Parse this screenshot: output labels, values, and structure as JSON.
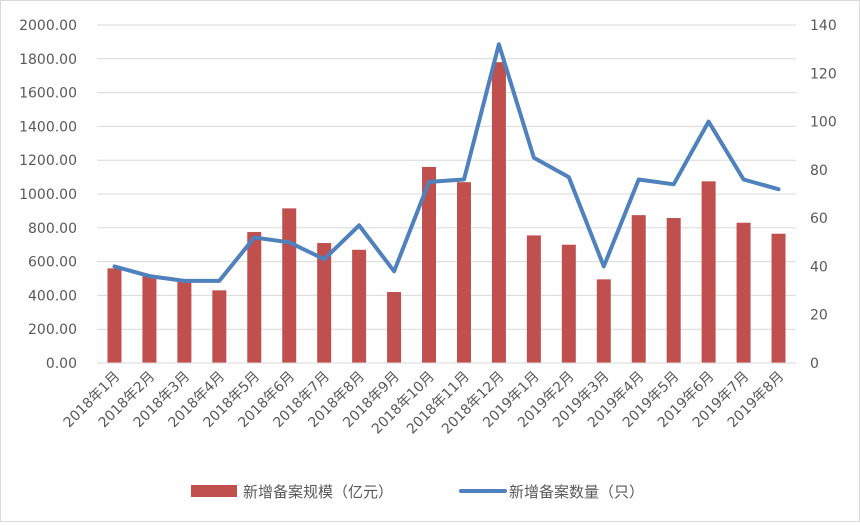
{
  "chart_data": {
    "type": "bar",
    "categories": [
      "2018年1月",
      "2018年2月",
      "2018年3月",
      "2018年4月",
      "2018年5月",
      "2018年6月",
      "2018年7月",
      "2018年8月",
      "2018年9月",
      "2018年10月",
      "2018年11月",
      "2018年12月",
      "2019年1月",
      "2019年2月",
      "2019年3月",
      "2019年4月",
      "2019年5月",
      "2019年6月",
      "2019年7月",
      "2019年8月"
    ],
    "series": [
      {
        "name": "新增备案规模（亿元）",
        "type": "bar",
        "axis": "left",
        "color": "#c0504d",
        "values": [
          560,
          520,
          490,
          430,
          775,
          915,
          710,
          670,
          420,
          1160,
          1070,
          1780,
          755,
          700,
          495,
          875,
          858,
          1075,
          830,
          765
        ]
      },
      {
        "name": "新增备案数量（只）",
        "type": "line",
        "axis": "right",
        "color": "#4f81bd",
        "values": [
          40,
          36,
          34,
          34,
          52,
          50,
          43,
          57,
          38,
          75,
          76,
          132,
          85,
          77,
          40,
          76,
          74,
          100,
          76,
          72
        ]
      }
    ],
    "y_left": {
      "ylim": [
        0,
        2000
      ],
      "ticks": [
        "0.00",
        "200.00",
        "400.00",
        "600.00",
        "800.00",
        "1000.00",
        "1200.00",
        "1400.00",
        "1600.00",
        "1800.00",
        "2000.00"
      ]
    },
    "y_right": {
      "ylim": [
        0,
        140
      ],
      "ticks": [
        "0",
        "20",
        "40",
        "60",
        "80",
        "100",
        "120",
        "140"
      ]
    },
    "gridlines": true,
    "legend_position": "bottom"
  }
}
